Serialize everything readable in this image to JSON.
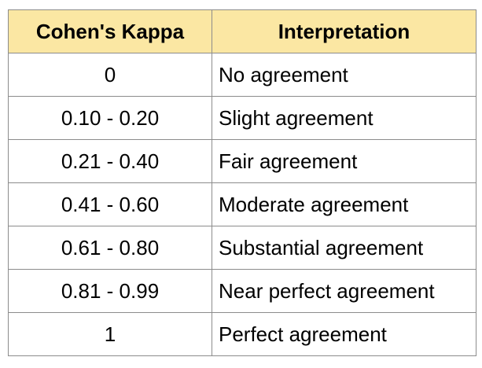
{
  "table": {
    "headers": [
      "Cohen's Kappa",
      "Interpretation"
    ],
    "header_bg": "#fbe7a3",
    "rows": [
      {
        "kappa": "0",
        "interpretation": "No agreement"
      },
      {
        "kappa": "0.10 - 0.20",
        "interpretation": "Slight agreement"
      },
      {
        "kappa": "0.21 - 0.40",
        "interpretation": "Fair agreement"
      },
      {
        "kappa": "0.41 - 0.60",
        "interpretation": "Moderate agreement"
      },
      {
        "kappa": "0.61 - 0.80",
        "interpretation": "Substantial agreement"
      },
      {
        "kappa": "0.81 - 0.99",
        "interpretation": "Near perfect agreement"
      },
      {
        "kappa": "1",
        "interpretation": "Perfect agreement"
      }
    ]
  }
}
